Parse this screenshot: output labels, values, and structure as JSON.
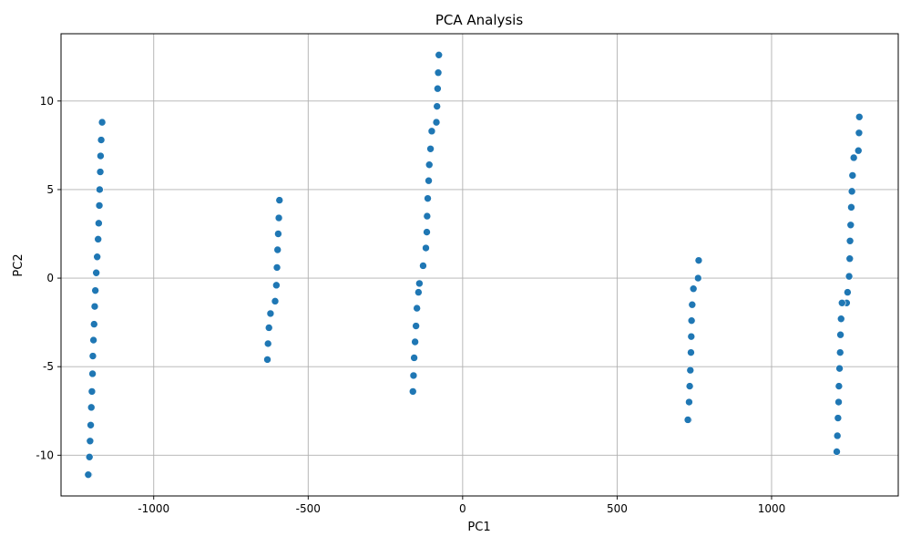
{
  "chart_data": {
    "type": "scatter",
    "title": "PCA Analysis",
    "xlabel": "PC1",
    "ylabel": "PC2",
    "xlim": [
      -1300,
      1410
    ],
    "ylim": [
      -12.3,
      13.8
    ],
    "xticks": [
      -1000,
      -500,
      0,
      500,
      1000
    ],
    "yticks": [
      -10,
      -5,
      0,
      5,
      10
    ],
    "xtick_labels": [
      "-1000",
      "-500",
      "0",
      "500",
      "1000"
    ],
    "ytick_labels": [
      "-10",
      "-5",
      "0",
      "5",
      "10"
    ],
    "grid": true,
    "marker_color": "#1f77b4",
    "series": [
      {
        "x": [
          -1167,
          -1170,
          -1172,
          -1173,
          -1175,
          -1176,
          -1178,
          -1180,
          -1183,
          -1186,
          -1189,
          -1191,
          -1193,
          -1195,
          -1197,
          -1198,
          -1200,
          -1202,
          -1204,
          -1206,
          -1208,
          -1210,
          -1212
        ],
        "y": [
          8.8,
          7.8,
          6.9,
          6.0,
          5.0,
          4.1,
          3.1,
          2.2,
          1.2,
          0.3,
          -0.7,
          -1.6,
          -2.6,
          -3.5,
          -4.4,
          -5.4,
          -6.4,
          -7.3,
          -8.3,
          -9.2,
          -10.1,
          -11.1,
          -11.1
        ]
      },
      {
        "x": [
          -593,
          -595,
          -597,
          -599,
          -601,
          -603,
          -607,
          -622,
          -627,
          -630,
          -632
        ],
        "y": [
          4.4,
          3.4,
          2.5,
          1.6,
          0.6,
          -0.4,
          -1.3,
          -2.0,
          -2.8,
          -3.7,
          -4.6
        ]
      },
      {
        "x": [
          -77,
          -79,
          -81,
          -83,
          -85,
          -100,
          -104,
          -108,
          -110,
          -113,
          -115,
          -116,
          -119,
          -128,
          -140,
          -143,
          -148,
          -151,
          -154,
          -157,
          -159
        ],
        "y": [
          12.6,
          11.6,
          10.7,
          9.7,
          8.8,
          8.3,
          7.3,
          6.4,
          5.5,
          4.5,
          3.5,
          2.6,
          1.7,
          0.7,
          -0.3,
          -0.8,
          -1.7,
          -2.7,
          -3.6,
          -4.5,
          -5.5
        ]
      },
      {
        "x": [
          -161
        ],
        "y": [
          -6.4
        ]
      },
      {
        "x": [
          764,
          762,
          747,
          743,
          741,
          740,
          739,
          737,
          735,
          733,
          731,
          729
        ],
        "y": [
          1.0,
          0.0,
          -0.6,
          -1.5,
          -2.4,
          -3.3,
          -4.2,
          -5.2,
          -6.1,
          -7.0,
          -8.0,
          -8.0
        ]
      },
      {
        "x": [
          1284,
          1283,
          1281,
          1266,
          1262,
          1260,
          1258,
          1256,
          1254,
          1253,
          1251,
          1246,
          1243,
          1228,
          1225,
          1223,
          1222,
          1220,
          1218,
          1217,
          1215,
          1213,
          1211
        ],
        "y": [
          9.1,
          8.2,
          7.2,
          6.8,
          5.8,
          4.9,
          4.0,
          3.0,
          2.1,
          1.1,
          0.1,
          -0.8,
          -1.4,
          -1.4,
          -2.3,
          -3.2,
          -4.2,
          -5.1,
          -6.1,
          -7.0,
          -7.9,
          -8.9,
          -9.8
        ]
      }
    ]
  }
}
